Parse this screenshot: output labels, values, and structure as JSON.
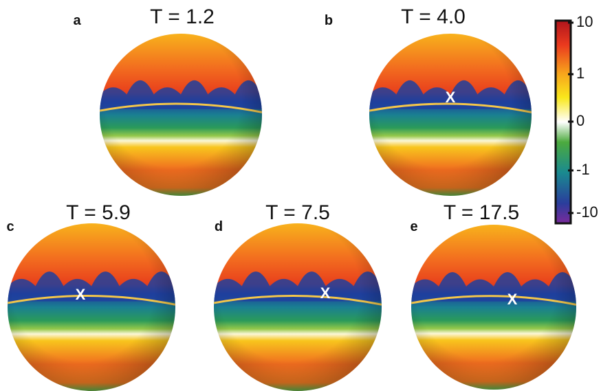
{
  "panels": [
    {
      "letter": "a",
      "title": "T = 1.2"
    },
    {
      "letter": "b",
      "title": "T = 4.0",
      "marker": "X"
    },
    {
      "letter": "c",
      "title": "T = 5.9",
      "marker": "X"
    },
    {
      "letter": "d",
      "title": "T = 7.5",
      "marker": "X"
    },
    {
      "letter": "e",
      "title": "T = 17.5",
      "marker": "X"
    }
  ],
  "colorbar": {
    "ticks": [
      "10",
      "1",
      "0",
      "-1",
      "-10"
    ]
  }
}
